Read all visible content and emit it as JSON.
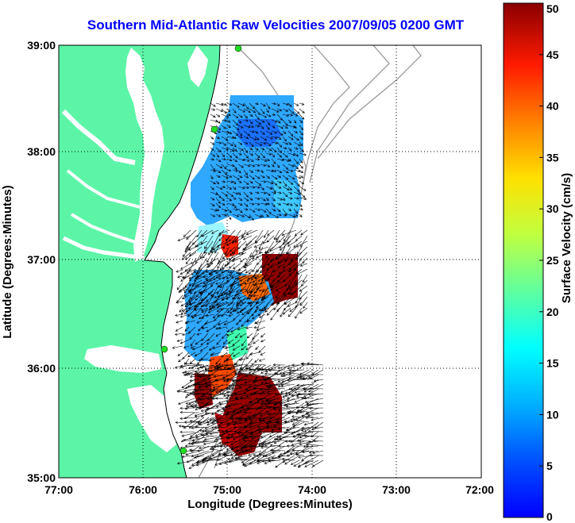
{
  "title": "Southern Mid-Atlantic Raw Velocities 2007/09/05 0200 GMT",
  "xlabel": "Longitude (Degrees:Minutes)",
  "ylabel": "Latitude (Degrees:Minutes)",
  "x_ticks": [
    "77:00",
    "76:00",
    "75:00",
    "74:00",
    "73:00",
    "72:00"
  ],
  "y_ticks": [
    "39:00",
    "38:00",
    "37:00",
    "36:00",
    "35:00"
  ],
  "colorbar": {
    "label": "Surface Velocity (cm/s)",
    "ticks": [
      "0",
      "5",
      "10",
      "15",
      "20",
      "25",
      "30",
      "35",
      "40",
      "45",
      "50"
    ],
    "range": [
      0,
      50
    ],
    "colormap": "jet"
  },
  "colors": {
    "land": "#5cf5a8",
    "title": "#0000ff",
    "station": "#22dd22"
  },
  "icons": {
    "station": "radar-station-marker-icon"
  }
}
